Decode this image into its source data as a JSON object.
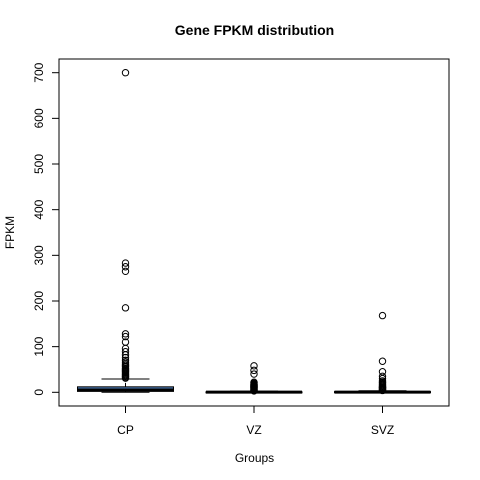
{
  "chart_data": {
    "type": "boxplot",
    "title": "Gene FPKM distribution",
    "xlabel": "Groups",
    "ylabel": "FPKM",
    "ylim": [
      -30,
      730
    ],
    "yticks": [
      0,
      100,
      200,
      300,
      400,
      500,
      600,
      700
    ],
    "categories": [
      "CP",
      "VZ",
      "SVZ"
    ],
    "box_color": "#4a7ab5",
    "groups": [
      {
        "name": "CP",
        "q1": 2,
        "median": 5,
        "q3": 12,
        "whisker_low": 0,
        "whisker_high": 29,
        "outliers": [
          31,
          33,
          35,
          37,
          39,
          41,
          43,
          45,
          47,
          49,
          51,
          53,
          56,
          59,
          62,
          66,
          70,
          76,
          82,
          89,
          96,
          110,
          122,
          128,
          185,
          265,
          275,
          283,
          700
        ]
      },
      {
        "name": "VZ",
        "q1": 0,
        "median": 0.3,
        "q3": 1,
        "whisker_low": 0,
        "whisker_high": 2.5,
        "outliers": [
          3,
          4,
          5,
          6,
          7,
          8,
          9,
          10,
          11,
          12,
          13,
          14,
          15,
          16,
          17,
          18,
          20,
          22,
          40,
          48,
          58
        ]
      },
      {
        "name": "SVZ",
        "q1": 0,
        "median": 0.5,
        "q3": 1.5,
        "whisker_low": 0,
        "whisker_high": 3.5,
        "outliers": [
          4,
          5,
          6,
          7,
          8,
          9,
          10,
          11,
          12,
          14,
          16,
          18,
          20,
          22,
          25,
          30,
          35,
          45,
          68,
          168
        ]
      }
    ]
  }
}
